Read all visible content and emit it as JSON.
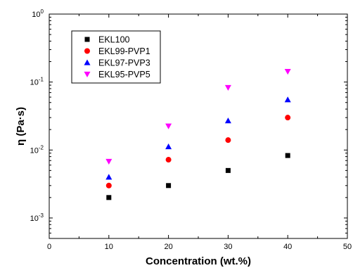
{
  "chart_data": {
    "type": "scatter",
    "title": "",
    "xlabel": "Concentration (wt.%)",
    "ylabel": "η (Pa·s)",
    "xlim": [
      0,
      50
    ],
    "ylim": [
      0.0005,
      1
    ],
    "yscale": "log",
    "x_ticks": [
      0,
      10,
      20,
      30,
      40,
      50
    ],
    "y_ticks": [
      {
        "value": 0.001,
        "base": "10",
        "exp": "-3"
      },
      {
        "value": 0.01,
        "base": "10",
        "exp": "-2"
      },
      {
        "value": 0.1,
        "base": "10",
        "exp": "-1"
      },
      {
        "value": 1,
        "base": "10",
        "exp": "0"
      }
    ],
    "grid": false,
    "legend_position": "top-left",
    "series": [
      {
        "name": "EKL100",
        "marker": "square",
        "color": "#000000",
        "x": [
          10,
          20,
          30,
          40
        ],
        "y": [
          0.002,
          0.003,
          0.005,
          0.0083
        ]
      },
      {
        "name": "EKL99-PVP1",
        "marker": "circle",
        "color": "#ff0000",
        "x": [
          10,
          20,
          30,
          40
        ],
        "y": [
          0.003,
          0.0072,
          0.014,
          0.03
        ]
      },
      {
        "name": "EKL97-PVP3",
        "marker": "triangle-up",
        "color": "#0000ff",
        "x": [
          10,
          20,
          30,
          40
        ],
        "y": [
          0.004,
          0.0112,
          0.027,
          0.055
        ]
      },
      {
        "name": "EKL95-PVP5",
        "marker": "triangle-down",
        "color": "#ff00ff",
        "x": [
          10,
          20,
          30,
          40
        ],
        "y": [
          0.0068,
          0.0225,
          0.083,
          0.143
        ]
      }
    ]
  }
}
